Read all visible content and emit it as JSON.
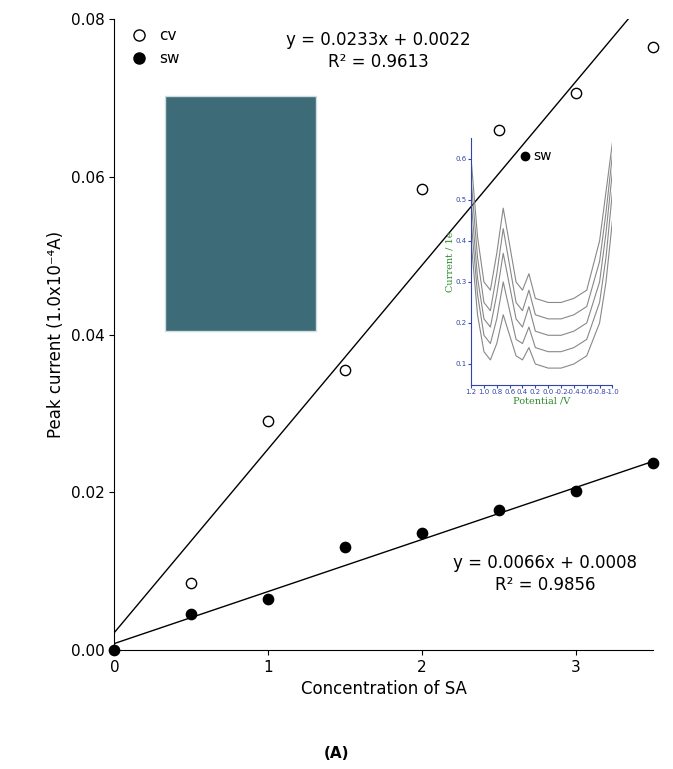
{
  "chart_data": [
    {
      "type": "scatter",
      "x_label": "Concentration of SA",
      "y_label": "Peak current (1.0x10⁻⁴A)",
      "caption": "(A)",
      "xlim": [
        0,
        3.5
      ],
      "xticks": [
        0,
        1,
        2,
        3
      ],
      "ylim": [
        0,
        0.08
      ],
      "yticks": [
        {
          "value": 0,
          "label": "0.00"
        },
        {
          "value": 0.02,
          "label": "0.02"
        },
        {
          "value": 0.04,
          "label": "0.04"
        },
        {
          "value": 0.06,
          "label": "0.06"
        },
        {
          "value": 0.08,
          "label": "0.08"
        }
      ],
      "legend": "upper left",
      "series": [
        {
          "name": "cv",
          "color": "#000000",
          "marker": "open_circle",
          "x": [
            0.5,
            1,
            1.5,
            2,
            2.5,
            3,
            3.5
          ],
          "values": [
            0.0085,
            0.029,
            0.0355,
            0.0585,
            0.066,
            0.0707,
            0.0765
          ],
          "fit": {
            "slope": 0.0233,
            "intercept": 0.0022,
            "equation": "y = 0.0233x + 0.0022",
            "r_squared": "R² = 0.9613"
          }
        },
        {
          "name": "sw",
          "color": "#000000",
          "marker": "filled_circle",
          "x": [
            0,
            0.5,
            1,
            1.5,
            2,
            2.5,
            3,
            3.5
          ],
          "values": [
            0,
            0.0045,
            0.0065,
            0.013,
            0.0148,
            0.0178,
            0.0202,
            0.0237
          ],
          "fit": {
            "slope": 0.0066,
            "intercept": 0.0008,
            "equation": "y = 0.0066x + 0.0008",
            "r_squared": "R² = 0.9856"
          }
        }
      ]
    },
    {
      "type": "line",
      "x_label": "Potential /V",
      "y_label": "Current / 1e",
      "annotation": "sw",
      "xlim": [
        1.2,
        -1.0
      ],
      "xticks": [
        1.2,
        1.0,
        0.8,
        0.6,
        0.4,
        0.2,
        0.0,
        -0.2,
        -0.4,
        -0.6,
        -0.8,
        -1.0
      ],
      "ylim": [
        0.05,
        0.65
      ],
      "yticks": [
        0.1,
        0.2,
        0.3,
        0.4,
        0.5,
        0.6
      ],
      "x": [
        1.2,
        1.1,
        1.0,
        0.9,
        0.8,
        0.7,
        0.6,
        0.5,
        0.4,
        0.3,
        0.2,
        0.0,
        -0.2,
        -0.4,
        -0.6,
        -0.8,
        -0.9,
        -1.0
      ],
      "series": [
        {
          "color": "#888888",
          "values": [
            0.4,
            0.22,
            0.13,
            0.11,
            0.15,
            0.22,
            0.17,
            0.12,
            0.11,
            0.14,
            0.1,
            0.09,
            0.09,
            0.1,
            0.12,
            0.2,
            0.3,
            0.45
          ]
        },
        {
          "color": "#888888",
          "values": [
            0.45,
            0.27,
            0.17,
            0.15,
            0.21,
            0.3,
            0.23,
            0.16,
            0.15,
            0.19,
            0.14,
            0.13,
            0.13,
            0.14,
            0.16,
            0.25,
            0.36,
            0.52
          ]
        },
        {
          "color": "#888888",
          "values": [
            0.5,
            0.31,
            0.21,
            0.19,
            0.27,
            0.37,
            0.29,
            0.21,
            0.19,
            0.24,
            0.18,
            0.17,
            0.17,
            0.18,
            0.2,
            0.3,
            0.42,
            0.57
          ]
        },
        {
          "color": "#888888",
          "values": [
            0.55,
            0.36,
            0.25,
            0.23,
            0.32,
            0.43,
            0.34,
            0.25,
            0.23,
            0.28,
            0.22,
            0.21,
            0.21,
            0.22,
            0.24,
            0.35,
            0.47,
            0.61
          ]
        },
        {
          "color": "#888888",
          "values": [
            0.6,
            0.41,
            0.3,
            0.28,
            0.37,
            0.48,
            0.39,
            0.3,
            0.28,
            0.32,
            0.26,
            0.25,
            0.25,
            0.26,
            0.28,
            0.4,
            0.52,
            0.64
          ]
        }
      ]
    }
  ]
}
